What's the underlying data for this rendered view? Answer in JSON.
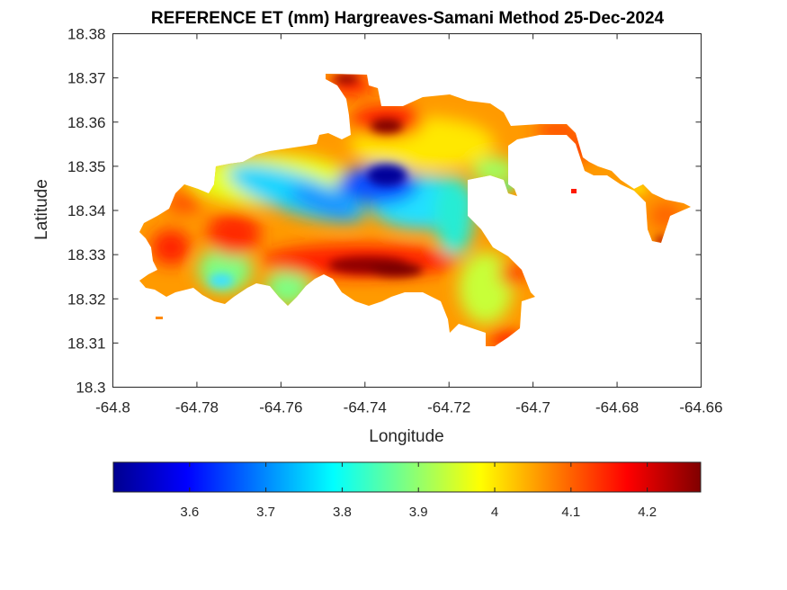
{
  "title": "REFERENCE ET (mm) Hargreaves-Samani Method  25-Dec-2024",
  "map": {
    "type": "filled-contour",
    "xlabel": "Longitude",
    "ylabel": "Latitude",
    "xlim": [
      -64.8,
      -64.66
    ],
    "ylim": [
      18.3,
      18.38
    ],
    "xticks": [
      "-64.8",
      "-64.78",
      "-64.76",
      "-64.74",
      "-64.72",
      "-64.7",
      "-64.68",
      "-64.66"
    ],
    "yticks": [
      "18.3",
      "18.31",
      "18.32",
      "18.33",
      "18.34",
      "18.35",
      "18.36",
      "18.37",
      "18.38"
    ],
    "grid": false,
    "colormap": "jet",
    "value_range": [
      3.5,
      4.27
    ],
    "regions": [
      {
        "label": "low ET core",
        "lon": -64.736,
        "lat": 18.346,
        "value": 3.52
      },
      {
        "label": "central low band",
        "lon": -64.755,
        "lat": 18.344,
        "value": 3.75
      },
      {
        "label": "south-central high band",
        "lon": -64.74,
        "lat": 18.328,
        "value": 4.25
      },
      {
        "label": "northern high",
        "lon": -64.735,
        "lat": 18.361,
        "value": 4.25
      },
      {
        "label": "western high",
        "lon": -64.785,
        "lat": 18.332,
        "value": 4.15
      },
      {
        "label": "eastern peninsula",
        "lon": -64.668,
        "lat": 18.338,
        "value": 4.1
      }
    ]
  },
  "colorbar": {
    "orientation": "horizontal",
    "placement": "bottom",
    "ticks": [
      "3.6",
      "3.7",
      "3.8",
      "3.9",
      "4",
      "4.1",
      "4.2"
    ],
    "tick_values": [
      3.6,
      3.7,
      3.8,
      3.9,
      4.0,
      4.1,
      4.2
    ],
    "range": [
      3.5,
      4.27
    ]
  }
}
